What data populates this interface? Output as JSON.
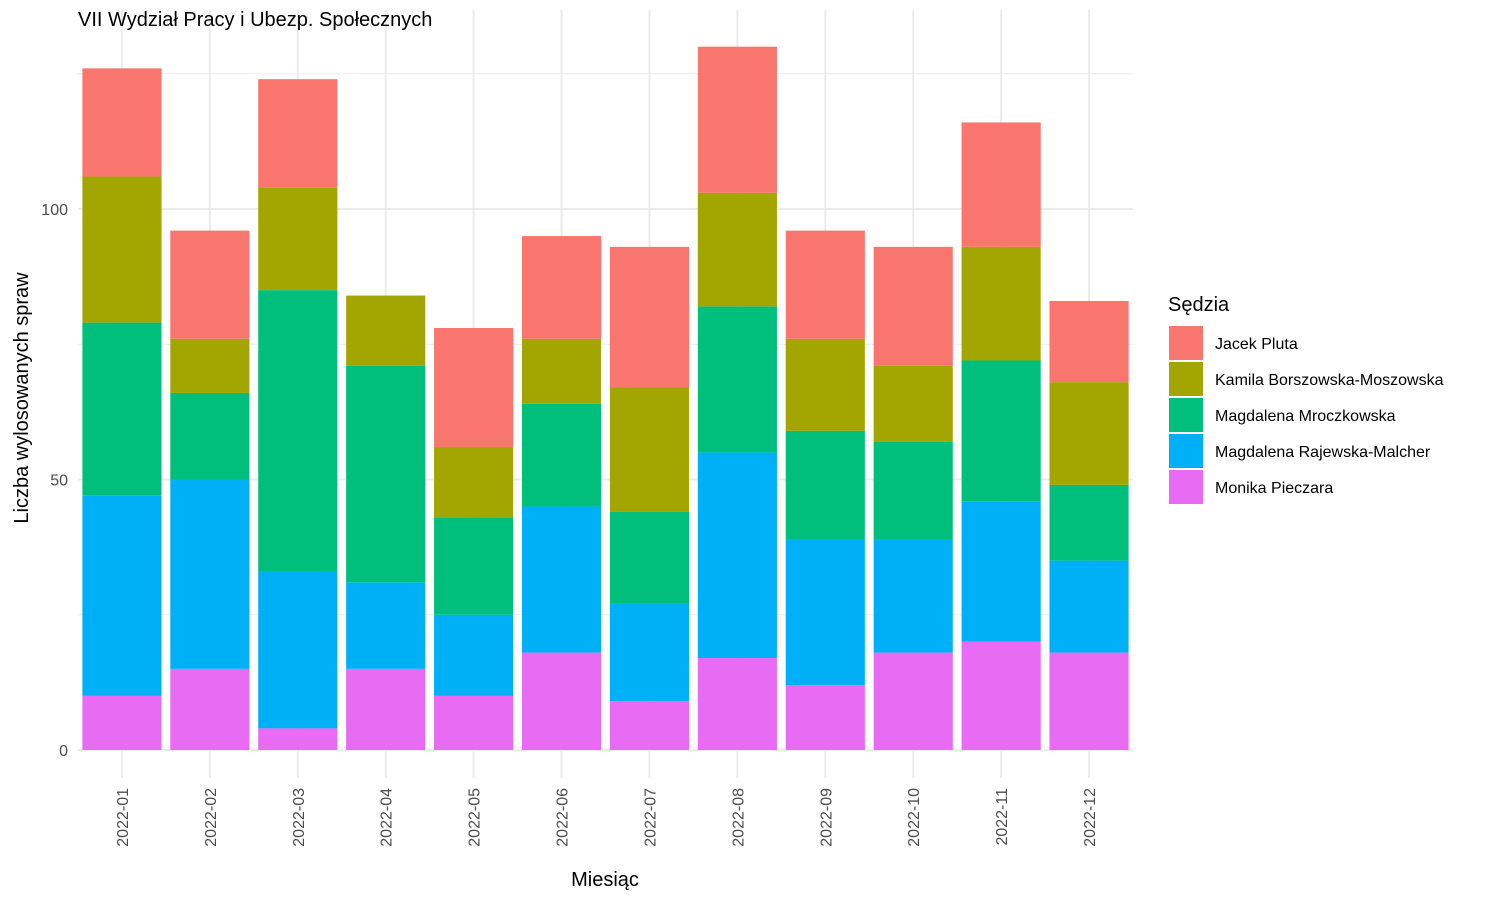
{
  "chart_data": {
    "type": "bar",
    "stacked": true,
    "title": "VII Wydział Pracy i Ubezp. Społecznych",
    "xlabel": "Miesiąc",
    "ylabel": "Liczba wylosowanych spraw",
    "ylim": [
      0,
      130
    ],
    "yticks": [
      0,
      50,
      100
    ],
    "grid": true,
    "legend_title": "Sędzia",
    "legend_position": "right",
    "categories": [
      "2022-01",
      "2022-02",
      "2022-03",
      "2022-04",
      "2022-05",
      "2022-06",
      "2022-07",
      "2022-08",
      "2022-09",
      "2022-10",
      "2022-11",
      "2022-12"
    ],
    "series": [
      {
        "name": "Jacek Pluta",
        "color": "#F8766D",
        "values": [
          20,
          20,
          20,
          0,
          22,
          19,
          26,
          27,
          20,
          22,
          23,
          15
        ]
      },
      {
        "name": "Kamila Borszowska-Moszowska",
        "color": "#A3A500",
        "values": [
          27,
          10,
          19,
          13,
          13,
          12,
          23,
          21,
          17,
          14,
          21,
          19
        ]
      },
      {
        "name": "Magdalena Mroczkowska",
        "color": "#00BF7D",
        "values": [
          32,
          16,
          52,
          40,
          18,
          19,
          17,
          27,
          20,
          18,
          26,
          14
        ]
      },
      {
        "name": "Magdalena Rajewska-Malcher",
        "color": "#00B0F6",
        "values": [
          37,
          35,
          29,
          16,
          15,
          27,
          18,
          38,
          27,
          21,
          26,
          17
        ]
      },
      {
        "name": "Monika Pieczara",
        "color": "#E76BF3",
        "values": [
          10,
          15,
          4,
          15,
          10,
          18,
          9,
          17,
          12,
          18,
          20,
          18
        ]
      }
    ]
  }
}
